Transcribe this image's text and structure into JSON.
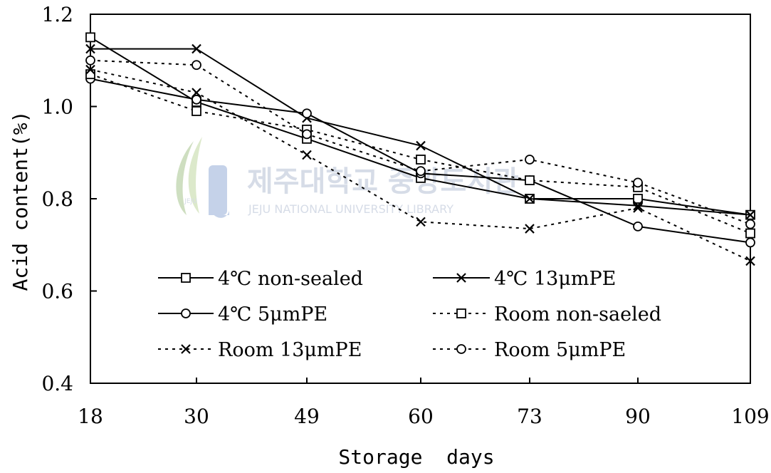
{
  "chart_data": {
    "type": "line",
    "title": "",
    "xlabel": "Storage  days",
    "ylabel": "Acid content(%)",
    "categories": [
      "18",
      "30",
      "49",
      "60",
      "73",
      "90",
      "109"
    ],
    "ylim": [
      0.4,
      1.2
    ],
    "yticks": [
      "0.4",
      "0.6",
      "0.8",
      "1.0",
      "1.2"
    ],
    "grid": false,
    "legend_position": "bottom-center inside plot",
    "series": [
      {
        "name": "4℃ non-sealed",
        "line_style": "solid",
        "marker": "square",
        "values": [
          1.15,
          1.01,
          0.93,
          0.845,
          0.8,
          0.8,
          0.765
        ]
      },
      {
        "name": "4℃ 13μmPE",
        "line_style": "solid",
        "marker": "x",
        "values": [
          1.125,
          1.125,
          0.975,
          0.915,
          0.8,
          0.785,
          0.765
        ]
      },
      {
        "name": "4℃ 5μmPE",
        "line_style": "solid",
        "marker": "circle",
        "values": [
          1.06,
          1.015,
          0.985,
          0.855,
          0.84,
          0.74,
          0.705
        ]
      },
      {
        "name": "Room non-saeled",
        "line_style": "dotted",
        "marker": "square",
        "values": [
          1.07,
          0.99,
          0.95,
          0.885,
          0.84,
          0.825,
          0.725
        ]
      },
      {
        "name": "Room 13μmPE",
        "line_style": "dotted",
        "marker": "x",
        "values": [
          1.08,
          1.03,
          0.895,
          0.75,
          0.735,
          0.78,
          0.665
        ]
      },
      {
        "name": "Room 5μmPE",
        "line_style": "dotted",
        "marker": "circle",
        "values": [
          1.1,
          1.09,
          0.94,
          0.86,
          0.885,
          0.835,
          0.745
        ]
      }
    ]
  },
  "watermark": {
    "title": "제주대학교 중앙도서관",
    "subtitle": "JEJU NATIONAL UNIVERSITY LIBRARY",
    "emblem_text": "JEJU",
    "color": "#cfd6e3"
  },
  "colors": {
    "line": "#000000",
    "background": "#ffffff"
  }
}
